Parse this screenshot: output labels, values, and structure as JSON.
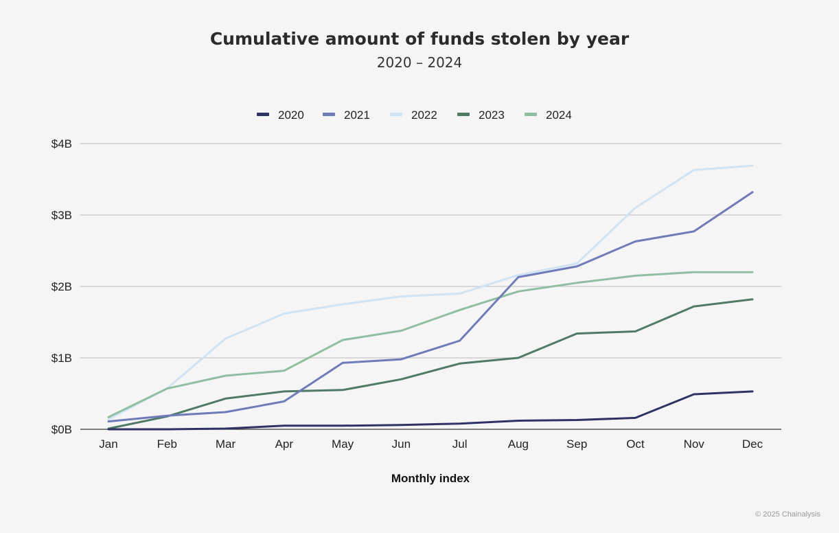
{
  "title": "Cumulative amount of funds stolen by year",
  "subtitle": "2020 – 2024",
  "credit": "© 2025 Chainalysis",
  "chart_data": {
    "type": "line",
    "title": "Cumulative amount of funds stolen by year",
    "subtitle": "2020 – 2024",
    "xlabel": "Monthly index",
    "ylabel": "",
    "x": [
      "Jan",
      "Feb",
      "Mar",
      "Apr",
      "May",
      "Jun",
      "Jul",
      "Aug",
      "Sep",
      "Oct",
      "Nov",
      "Dec"
    ],
    "ylim": [
      0,
      4
    ],
    "yticks": [
      {
        "value": 0,
        "label": "$0B"
      },
      {
        "value": 1,
        "label": "$1B"
      },
      {
        "value": 2,
        "label": "$2B"
      },
      {
        "value": 3,
        "label": "$3B"
      },
      {
        "value": 4,
        "label": "$4B"
      }
    ],
    "grid": true,
    "legend_position": "top-center",
    "series": [
      {
        "name": "2020",
        "color": "#2e3366",
        "values": [
          0.0,
          0.0,
          0.01,
          0.05,
          0.05,
          0.06,
          0.08,
          0.12,
          0.13,
          0.16,
          0.49,
          0.53
        ]
      },
      {
        "name": "2021",
        "color": "#6f7bb9",
        "values": [
          0.11,
          0.19,
          0.24,
          0.39,
          0.93,
          0.98,
          1.24,
          2.13,
          2.28,
          2.63,
          2.77,
          3.32
        ]
      },
      {
        "name": "2022",
        "color": "#cfe3f3",
        "values": [
          0.14,
          0.57,
          1.27,
          1.62,
          1.75,
          1.86,
          1.9,
          2.16,
          2.32,
          3.1,
          3.63,
          3.69
        ]
      },
      {
        "name": "2023",
        "color": "#4e7a66",
        "values": [
          0.01,
          0.18,
          0.43,
          0.53,
          0.55,
          0.7,
          0.92,
          1.0,
          1.34,
          1.37,
          1.72,
          1.82
        ]
      },
      {
        "name": "2024",
        "color": "#8fbfa0",
        "values": [
          0.17,
          0.57,
          0.75,
          0.82,
          1.25,
          1.38,
          1.67,
          1.93,
          2.05,
          2.15,
          2.2,
          2.2
        ]
      }
    ]
  }
}
